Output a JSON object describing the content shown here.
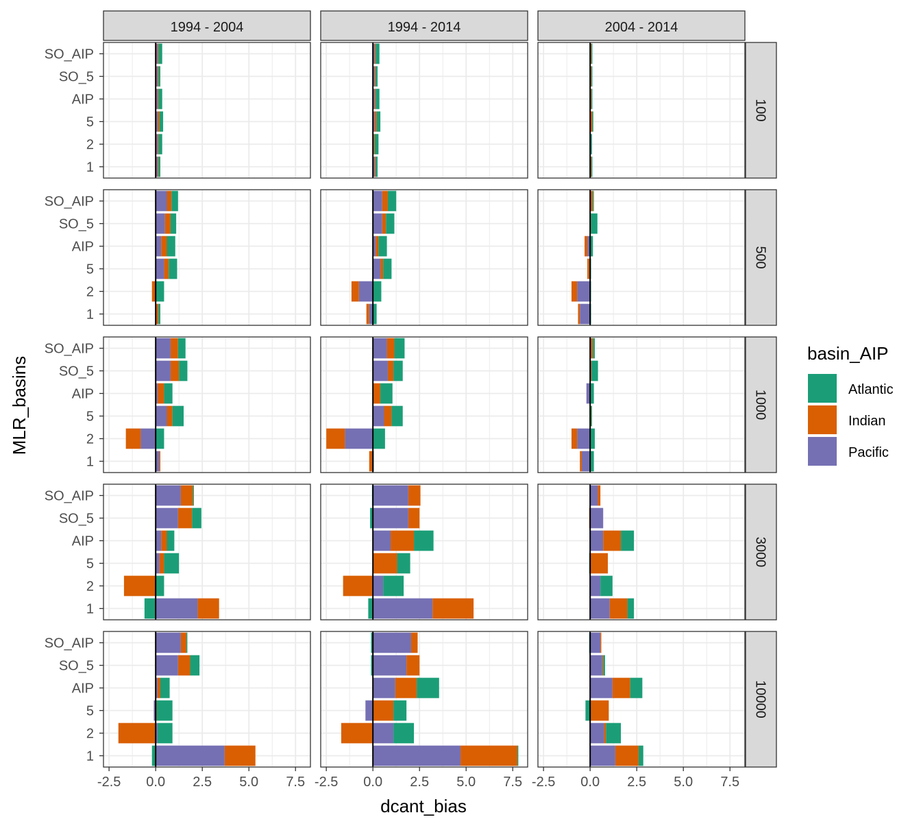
{
  "colors": {
    "Atlantic": "#1b9e77",
    "Indian": "#d95f02",
    "Pacific": "#7570b3"
  },
  "chart_data": {
    "type": "bar",
    "orientation": "horizontal-stacked",
    "xlabel": "dcant_bias",
    "ylabel": "MLR_basins",
    "xlim": [
      -2.8,
      8.3
    ],
    "x_ticks": [
      -2.5,
      0.0,
      2.5,
      5.0,
      7.5
    ],
    "x_tick_labels": [
      "-2.5",
      "0.0",
      "2.5",
      "5.0",
      "7.5"
    ],
    "reference_line": 0,
    "grid": true,
    "legend": {
      "title": "basin_AIP",
      "position": "right",
      "entries": [
        "Atlantic",
        "Indian",
        "Pacific"
      ]
    },
    "facet_cols": [
      "1994 - 2004",
      "1994 - 2014",
      "2004 - 2014"
    ],
    "facet_rows": [
      "100",
      "500",
      "1000",
      "3000",
      "10000"
    ],
    "categories": [
      "SO_AIP",
      "SO_5",
      "AIP",
      "5",
      "2",
      "1"
    ],
    "stack_order": [
      "Pacific",
      "Indian",
      "Atlantic"
    ],
    "panels": [
      [
        {
          "Atlantic": [
            0.2,
            0.1,
            0.2,
            0.2,
            0.2,
            0.1
          ],
          "Indian": [
            0.05,
            0.05,
            0.05,
            0.1,
            0.05,
            0.05
          ],
          "Pacific": [
            0.1,
            0.1,
            0.1,
            0.1,
            0.1,
            0.1
          ]
        },
        {
          "Atlantic": [
            0.2,
            0.1,
            0.2,
            0.2,
            0.2,
            0.1
          ],
          "Indian": [
            0.05,
            0.05,
            0.05,
            0.1,
            0.05,
            0.05
          ],
          "Pacific": [
            0.1,
            0.1,
            0.1,
            0.1,
            0.05,
            0.1
          ]
        },
        {
          "Atlantic": [
            0.05,
            0.05,
            0.05,
            0.05,
            0.05,
            0.05
          ],
          "Indian": [
            0.05,
            0.05,
            0.05,
            0.1,
            0.0,
            0.05
          ],
          "Pacific": [
            0.02,
            0.02,
            0.02,
            0.02,
            0.05,
            0.02
          ]
        }
      ],
      [
        {
          "Atlantic": [
            0.35,
            0.3,
            0.45,
            0.45,
            0.45,
            0.1
          ],
          "Indian": [
            0.25,
            0.3,
            0.3,
            0.25,
            -0.2,
            0.1
          ],
          "Pacific": [
            0.6,
            0.5,
            0.3,
            0.45,
            0.0,
            0.05
          ]
        },
        {
          "Atlantic": [
            0.45,
            0.45,
            0.45,
            0.45,
            0.45,
            0.2
          ],
          "Indian": [
            0.3,
            0.2,
            0.15,
            0.15,
            -0.4,
            -0.15
          ],
          "Pacific": [
            0.5,
            0.5,
            0.15,
            0.4,
            -0.75,
            -0.2
          ]
        },
        {
          "Atlantic": [
            0.05,
            0.35,
            0.15,
            0.05,
            0.05,
            0.05
          ],
          "Indian": [
            0.1,
            0.02,
            -0.15,
            -0.1,
            -0.3,
            -0.1
          ],
          "Pacific": [
            0.05,
            0.02,
            -0.15,
            -0.05,
            -0.7,
            -0.55
          ]
        }
      ],
      [
        {
          "Atlantic": [
            0.4,
            0.45,
            0.45,
            0.6,
            0.45,
            0.0
          ],
          "Indian": [
            0.4,
            0.45,
            0.35,
            0.3,
            -0.8,
            0.05
          ],
          "Pacific": [
            0.8,
            0.8,
            0.1,
            0.6,
            -0.8,
            0.2
          ]
        },
        {
          "Atlantic": [
            0.55,
            0.5,
            0.65,
            0.6,
            0.65,
            0.05
          ],
          "Indian": [
            0.4,
            0.3,
            0.4,
            0.4,
            -1.0,
            -0.2
          ],
          "Pacific": [
            0.75,
            0.8,
            0.0,
            0.6,
            -1.5,
            0.0
          ]
        },
        {
          "Atlantic": [
            0.1,
            0.35,
            0.2,
            0.05,
            0.25,
            0.2
          ],
          "Indian": [
            0.1,
            0.05,
            0.0,
            0.05,
            -0.3,
            -0.1
          ],
          "Pacific": [
            0.05,
            0.02,
            -0.2,
            0.0,
            -0.7,
            -0.45
          ]
        }
      ],
      [
        {
          "Atlantic": [
            0.05,
            0.5,
            0.4,
            0.8,
            0.45,
            -0.6
          ],
          "Indian": [
            0.65,
            0.75,
            0.3,
            0.25,
            -1.7,
            1.15
          ],
          "Pacific": [
            1.35,
            1.2,
            0.3,
            0.2,
            0.0,
            2.25
          ]
        },
        {
          "Atlantic": [
            -0.05,
            -0.15,
            1.05,
            0.7,
            1.1,
            -0.25
          ],
          "Indian": [
            0.65,
            0.6,
            1.25,
            1.3,
            -1.6,
            2.2
          ],
          "Pacific": [
            1.9,
            1.9,
            0.95,
            0.0,
            0.55,
            3.2
          ]
        },
        {
          "Atlantic": [
            0.0,
            0.0,
            0.7,
            -0.05,
            0.65,
            0.35
          ],
          "Indian": [
            0.15,
            -0.05,
            0.95,
            0.95,
            0.0,
            0.95
          ],
          "Pacific": [
            0.4,
            0.7,
            0.7,
            0.0,
            0.55,
            1.05
          ]
        }
      ],
      [
        {
          "Atlantic": [
            0.05,
            0.5,
            0.5,
            0.85,
            0.8,
            -0.2
          ],
          "Indian": [
            0.3,
            0.65,
            0.15,
            0.05,
            -2.0,
            1.65
          ],
          "Pacific": [
            1.35,
            1.2,
            0.1,
            -0.1,
            0.1,
            3.7
          ]
        },
        {
          "Atlantic": [
            -0.1,
            -0.1,
            1.2,
            0.7,
            1.1,
            0.05
          ],
          "Indian": [
            0.35,
            0.7,
            1.15,
            1.1,
            -1.7,
            3.05
          ],
          "Pacific": [
            2.05,
            1.8,
            1.2,
            -0.4,
            1.1,
            4.7
          ]
        },
        {
          "Atlantic": [
            -0.05,
            0.1,
            0.65,
            -0.25,
            0.8,
            0.25
          ],
          "Indian": [
            0.05,
            0.05,
            0.95,
            1.0,
            0.1,
            1.25
          ],
          "Pacific": [
            0.55,
            0.65,
            1.2,
            0.0,
            0.75,
            1.35
          ]
        }
      ]
    ]
  }
}
